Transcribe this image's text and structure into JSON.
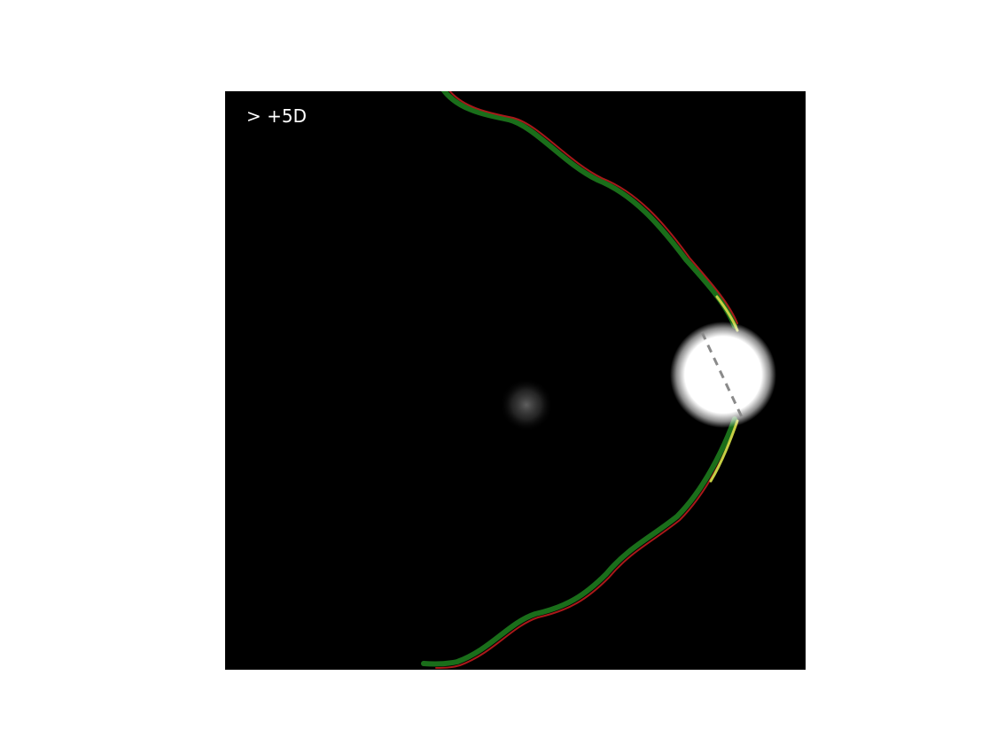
{
  "panel": {
    "label": "> +5D"
  },
  "colors": {
    "background": "#000000",
    "page": "#ffffff",
    "outer_curve": "#1a7a1a",
    "inner_curve": "#b01515",
    "highlight": "#c8d040",
    "spot": "#ffffff",
    "dashed_line": "#8a8a8a"
  }
}
